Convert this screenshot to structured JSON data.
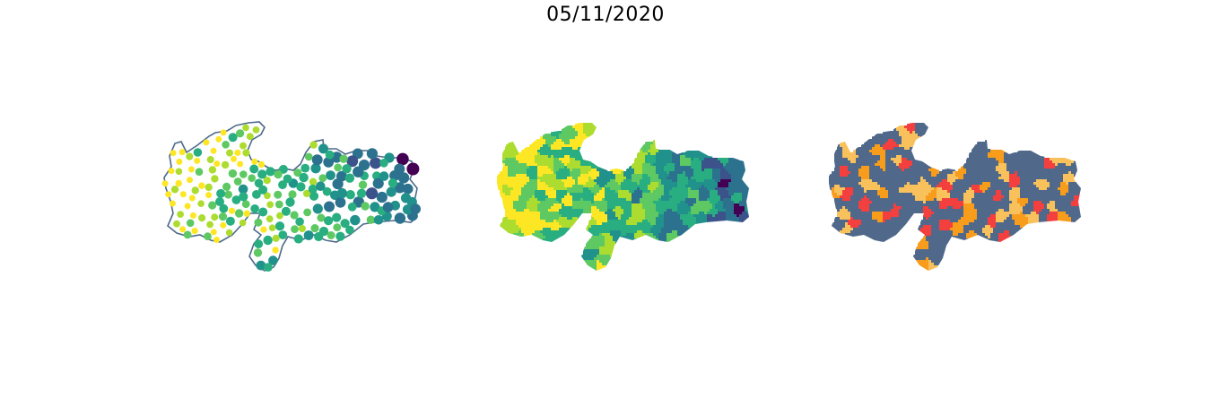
{
  "figure": {
    "title": "05/11/2020"
  },
  "colors": {
    "outline": "#4d6a8a",
    "viridis": [
      "#440154",
      "#3b528b",
      "#2c728e",
      "#21918c",
      "#28ae80",
      "#5ec962",
      "#addc30",
      "#fde725"
    ],
    "class_base": "#50698a",
    "class_light": "#f8c15c",
    "class_orange": "#f89c1c",
    "class_red": "#f43f3f"
  },
  "panels": [
    {
      "name": "proportional-symbol-map"
    },
    {
      "name": "choropleth-map"
    },
    {
      "name": "classification-map"
    }
  ]
}
